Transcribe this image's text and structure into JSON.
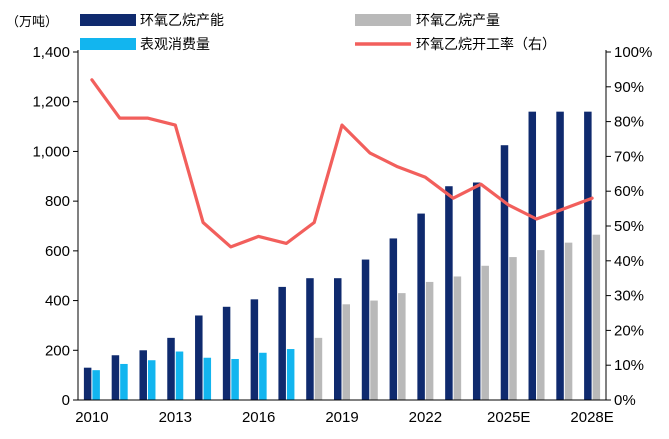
{
  "chart_data": {
    "type": "bar",
    "unit_label": "（万吨）",
    "categories": [
      "2010",
      "2011",
      "2012",
      "2013",
      "2014",
      "2015",
      "2016",
      "2017",
      "2018",
      "2019",
      "2020",
      "2021",
      "2022",
      "2023",
      "2024",
      "2025E",
      "2026E",
      "2027E",
      "2028E"
    ],
    "x_tick_labels": [
      "2010",
      "2013",
      "2016",
      "2019",
      "2022",
      "2025E",
      "2028E"
    ],
    "y_left": {
      "min": 0,
      "max": 1400,
      "ticks": [
        "0",
        "200",
        "400",
        "600",
        "800",
        "1,000",
        "1,200",
        "1,400"
      ]
    },
    "y_right": {
      "min": 0,
      "max": 100,
      "ticks": [
        "0%",
        "10%",
        "20%",
        "30%",
        "40%",
        "50%",
        "60%",
        "70%",
        "80%",
        "90%",
        "100%"
      ]
    },
    "series": [
      {
        "name": "环氧乙烷产能",
        "kind": "bar",
        "axis": "left",
        "color": "#0f2a6e",
        "values": [
          130,
          180,
          200,
          250,
          340,
          375,
          405,
          455,
          490,
          490,
          565,
          650,
          750,
          860,
          875,
          1025,
          1160,
          1160,
          1160
        ]
      },
      {
        "name": "环氧乙烷产量",
        "kind": "bar",
        "axis": "left",
        "color": "#b9b9b9",
        "values": [
          null,
          null,
          null,
          null,
          null,
          null,
          null,
          null,
          250,
          385,
          400,
          430,
          475,
          497,
          540,
          575,
          603,
          633,
          665
        ]
      },
      {
        "name": "表观消费量",
        "kind": "bar",
        "axis": "left",
        "color": "#12b5ef",
        "values": [
          120,
          145,
          160,
          195,
          170,
          165,
          190,
          205,
          null,
          null,
          null,
          null,
          null,
          null,
          null,
          null,
          null,
          null,
          null
        ]
      },
      {
        "name": "环氧乙烷开工率（右）",
        "kind": "line",
        "axis": "right",
        "color": "#f25f5c",
        "values": [
          92,
          81,
          81,
          79,
          51,
          44,
          47,
          45,
          51,
          79,
          71,
          67,
          64,
          58,
          62,
          56,
          52,
          55,
          58
        ]
      }
    ],
    "legend_position": "top",
    "grid": false
  }
}
